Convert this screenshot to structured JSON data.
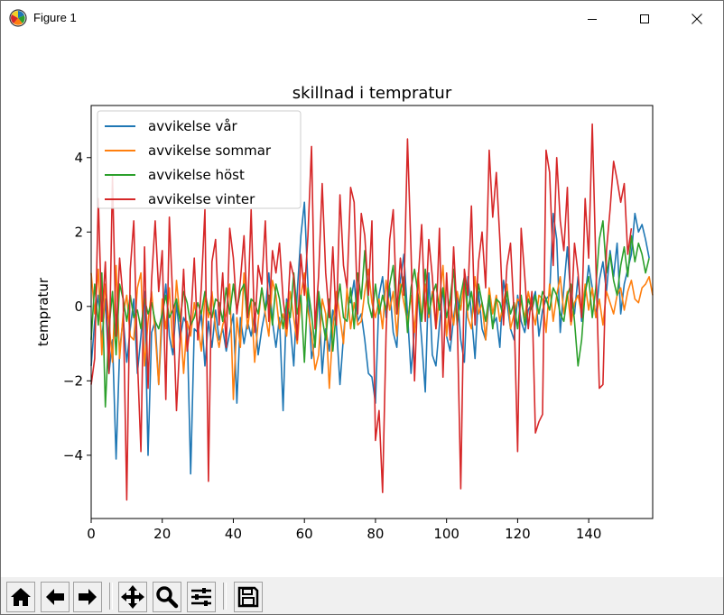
{
  "window": {
    "title": "Figure 1",
    "icons": [
      "matplotlib-icon",
      "minimize-icon",
      "maximize-icon",
      "close-icon"
    ]
  },
  "toolbar": {
    "icons": [
      "home-icon",
      "back-arrow-icon",
      "forward-arrow-icon",
      "pan-icon",
      "zoom-icon",
      "configure-subplots-icon",
      "save-icon"
    ]
  },
  "chart_data": {
    "type": "line",
    "title": "skillnad i tempratur",
    "xlabel": "",
    "ylabel": "tempratur",
    "xlim": [
      0,
      158
    ],
    "ylim": [
      -5.7,
      5.4
    ],
    "xticks": [
      0,
      20,
      40,
      60,
      80,
      100,
      120,
      140
    ],
    "yticks": [
      -4,
      -2,
      0,
      2,
      4
    ],
    "ytick_labels": [
      "−4",
      "−2",
      "0",
      "2",
      "4"
    ],
    "legend_position": "upper left",
    "grid": false,
    "series": [
      {
        "name": "avvikelse vår",
        "color": "#1f77b4",
        "values": [
          -1.6,
          -0.4,
          0.3,
          -0.9,
          0.2,
          -1.8,
          -0.9,
          -4.1,
          -1.2,
          -0.3,
          -1.5,
          -0.6,
          0.2,
          -1.8,
          -0.8,
          0.4,
          -4.0,
          -0.7,
          -0.4,
          -2.1,
          -0.3,
          0.6,
          -0.8,
          -1.3,
          0.1,
          -0.9,
          -0.3,
          -0.5,
          -4.5,
          -0.6,
          -0.7,
          -0.2,
          -1.6,
          -0.4,
          -1.1,
          -0.1,
          -0.9,
          -0.6,
          -1.2,
          -0.7,
          -0.2,
          -2.6,
          -0.3,
          -1.0,
          -0.4,
          -0.8,
          -0.2,
          -1.3,
          -0.6,
          -0.1,
          0.9,
          -0.4,
          -1.1,
          -0.3,
          -2.8,
          0.2,
          -0.5,
          -1.6,
          0.4,
          1.9,
          2.8,
          0.6,
          -1.4,
          -0.9,
          0.4,
          -1.8,
          -0.6,
          -1.2,
          -0.1,
          -0.5,
          -2.1,
          -0.8,
          0.3,
          0.1,
          0.7,
          -0.4,
          -0.2,
          -0.9,
          -1.8,
          -1.9,
          -2.6,
          0.3,
          0.8,
          -0.3,
          0.5,
          -0.7,
          -1.1,
          0.7,
          1.4,
          -0.2,
          -1.8,
          -0.6,
          0.3,
          -0.9,
          -2.3,
          0.9,
          -1.3,
          -1.6,
          -0.5,
          0.5,
          -0.8,
          -1.2,
          -0.3,
          0.4,
          -0.9,
          -1.5,
          0.8,
          -0.2,
          -1.4,
          0.4,
          -0.6,
          -0.9,
          0.2,
          -0.5,
          -0.3,
          -1.1,
          0.7,
          0.1,
          -0.6,
          -0.9,
          0.3,
          -0.4,
          -0.7,
          -0.1,
          0.1,
          0.4,
          -0.8,
          -0.1,
          0.2,
          0.3,
          2.5,
          1.8,
          -0.7,
          0.5,
          1.6,
          0.2,
          -0.2,
          0.8,
          -0.4,
          0.3,
          1.1,
          0.5,
          -0.3,
          0.7,
          1.2,
          0.4,
          1.5,
          0.8,
          1.7,
          -0.2,
          0.6,
          1.0,
          1.4,
          2.5,
          2.0,
          2.2,
          1.8,
          1.3
        ]
      },
      {
        "name": "avvikelse sommar",
        "color": "#ff7f0e",
        "values": [
          0.9,
          -0.2,
          1.0,
          -1.3,
          0.6,
          -0.4,
          -1.5,
          1.1,
          -1.4,
          -0.2,
          0.3,
          -0.8,
          -0.9,
          0.5,
          0.9,
          -1.6,
          -0.4,
          0.4,
          -0.7,
          -2.1,
          0.2,
          -0.6,
          0.5,
          -1.1,
          0.7,
          -0.3,
          -1.8,
          -0.4,
          -0.8,
          0.1,
          -0.5,
          -1.2,
          0.3,
          -0.3,
          0.4,
          -0.6,
          -1.1,
          -0.5,
          -0.2,
          0.6,
          -2.5,
          -0.3,
          -1.1,
          0.9,
          -0.6,
          0.2,
          -1.5,
          -0.4,
          0.5,
          -0.2,
          -0.8,
          0.7,
          0.3,
          -0.6,
          -0.2,
          -0.8,
          0.4,
          -0.3,
          -1.0,
          0.3,
          0.9,
          -0.1,
          -0.7,
          -1.7,
          -1.3,
          0.2,
          -0.2,
          -2.2,
          -0.6,
          0.4,
          -0.3,
          -1.0,
          0.5,
          -0.6,
          0.1,
          -0.5,
          -0.4,
          0.4,
          1.0,
          0.1,
          -0.3,
          0.2,
          -0.6,
          0.7,
          -0.1,
          0.4,
          -0.8,
          0.6,
          0.1,
          -0.4,
          0.3,
          -0.7,
          0.9,
          -0.4,
          0.6,
          -0.3,
          0.4,
          -0.6,
          0.2,
          1.1,
          -0.8,
          0.2,
          -0.5,
          0.4,
          -0.1,
          0.7,
          -0.3,
          -0.6,
          0.8,
          -0.2,
          0.1,
          -0.9,
          0.5,
          -0.2,
          0.3,
          -0.4,
          0.1,
          0.6,
          -0.6,
          -0.2,
          0.2,
          0.1,
          -0.3,
          0.4,
          -0.1,
          -0.5,
          0.3,
          0.2,
          -0.7,
          0.6,
          -0.4,
          0.3,
          0.8,
          -0.2,
          0.4,
          -0.5,
          0.1,
          0.3,
          -0.2,
          0.6,
          -0.1,
          0.5,
          -0.3,
          0.2,
          -0.5,
          0.4,
          0.1,
          -0.2,
          0.3,
          0.5,
          -0.1,
          0.4,
          0.7,
          0.2,
          0.1,
          0.5,
          0.6,
          0.8,
          0.3
        ]
      },
      {
        "name": "avvikelse höst",
        "color": "#2ca02c",
        "values": [
          -0.9,
          0.6,
          -0.5,
          0.9,
          -2.7,
          -0.6,
          0.4,
          -1.3,
          0.6,
          0.2,
          -0.4,
          0.3,
          -0.3,
          -0.1,
          -0.6,
          0.2,
          -0.2,
          0.1,
          -0.4,
          -0.6,
          -0.2,
          0.3,
          -0.3,
          -0.1,
          0.2,
          -0.4,
          0.4,
          0.1,
          -0.5,
          -0.3,
          0.1,
          -0.2,
          0.4,
          -0.1,
          -0.3,
          0.2,
          0.1,
          -0.4,
          0.5,
          -0.2,
          0.6,
          -0.1,
          0.4,
          0.6,
          -0.3,
          0.2,
          0.1,
          -0.2,
          0.5,
          -0.1,
          0.3,
          -0.5,
          0.6,
          0.2,
          -0.6,
          0.1,
          -0.3,
          0.9,
          -0.2,
          0.3,
          -1.5,
          0.5,
          -0.2,
          -1.1,
          0.4,
          -0.3,
          -0.9,
          0.2,
          -1.2,
          -0.1,
          0.6,
          -0.3,
          -0.4,
          0.5,
          -0.6,
          0.9,
          0.2,
          1.5,
          0.1,
          -0.3,
          0.6,
          -0.2,
          0.3,
          -0.1,
          0.6,
          1.1,
          -0.2,
          0.4,
          0.8,
          -0.7,
          0.5,
          1.0,
          0.3,
          -0.4,
          1.0,
          -0.2,
          0.3,
          0.6,
          -0.1,
          0.5,
          -0.3,
          0.2,
          1.0,
          -0.5,
          0.3,
          0.8,
          -0.1,
          0.4,
          -0.3,
          0.6,
          0.1,
          -0.4,
          0.3,
          -0.6,
          0.2,
          0.1,
          -0.3,
          0.4,
          -0.2,
          0.1,
          -0.6,
          0.3,
          -0.5,
          0.2,
          -0.1,
          0.3,
          -0.2,
          0.4,
          0.2,
          -0.1,
          0.5,
          0.3,
          -0.2,
          -0.4,
          0.3,
          0.6,
          -0.4,
          -1.6,
          -0.9,
          0.4,
          0.8,
          -0.3,
          0.5,
          1.8,
          2.3,
          0.9,
          1.4,
          0.7,
          0.3,
          1.1,
          1.6,
          0.8,
          1.9,
          1.2,
          1.7,
          1.4,
          0.9,
          1.3
        ]
      },
      {
        "name": "avvikelse vinter",
        "color": "#d62728",
        "values": [
          -2.1,
          -1.4,
          2.9,
          -0.4,
          1.2,
          -1.8,
          3.5,
          -0.8,
          1.3,
          0.2,
          -5.2,
          1.0,
          2.3,
          -1.4,
          -3.9,
          1.6,
          -2.2,
          0.7,
          2.3,
          0.4,
          1.5,
          -2.5,
          2.4,
          0.1,
          -2.8,
          -0.9,
          1.0,
          -1.2,
          -0.4,
          1.3,
          -0.9,
          0.5,
          2.6,
          -4.7,
          1.2,
          1.8,
          -0.5,
          0.9,
          -1.1,
          2.1,
          1.3,
          -0.2,
          0.7,
          1.9,
          -0.3,
          2.6,
          -0.7,
          1.1,
          0.6,
          2.3,
          -0.4,
          1.5,
          0.9,
          1.7,
          0.2,
          -0.6,
          1.2,
          0.8,
          -0.9,
          1.4,
          0.3,
          1.9,
          4.3,
          -0.6,
          0.8,
          3.3,
          0.9,
          -0.3,
          1.6,
          -0.5,
          3.0,
          1.1,
          0.5,
          3.2,
          2.8,
          -0.2,
          2.5,
          1.9,
          0.3,
          2.3,
          -3.6,
          -2.8,
          -5.0,
          -0.7,
          1.8,
          2.6,
          -0.2,
          1.3,
          0.3,
          4.5,
          1.5,
          -2.0,
          0.7,
          2.2,
          -0.4,
          1.8,
          0.8,
          -0.6,
          2.1,
          -1.9,
          0.9,
          -0.9,
          1.6,
          -0.3,
          -4.9,
          1.0,
          0.3,
          2.7,
          -0.5,
          1.2,
          2.0,
          0.5,
          4.2,
          2.4,
          3.6,
          1.8,
          -0.5,
          1.1,
          1.7,
          -0.2,
          -3.9,
          2.1,
          0.8,
          -0.6,
          0.4,
          -3.4,
          -3.1,
          -2.9,
          4.2,
          3.6,
          1.1,
          4.0,
          2.3,
          1.5,
          3.2,
          -0.4,
          1.7,
          0.9,
          -0.3,
          2.9,
          1.3,
          4.9,
          1.2,
          -2.2,
          -2.1,
          1.5,
          2.6,
          3.9,
          3.4,
          2.8,
          3.3,
          1.4,
          2.1
        ]
      }
    ]
  }
}
